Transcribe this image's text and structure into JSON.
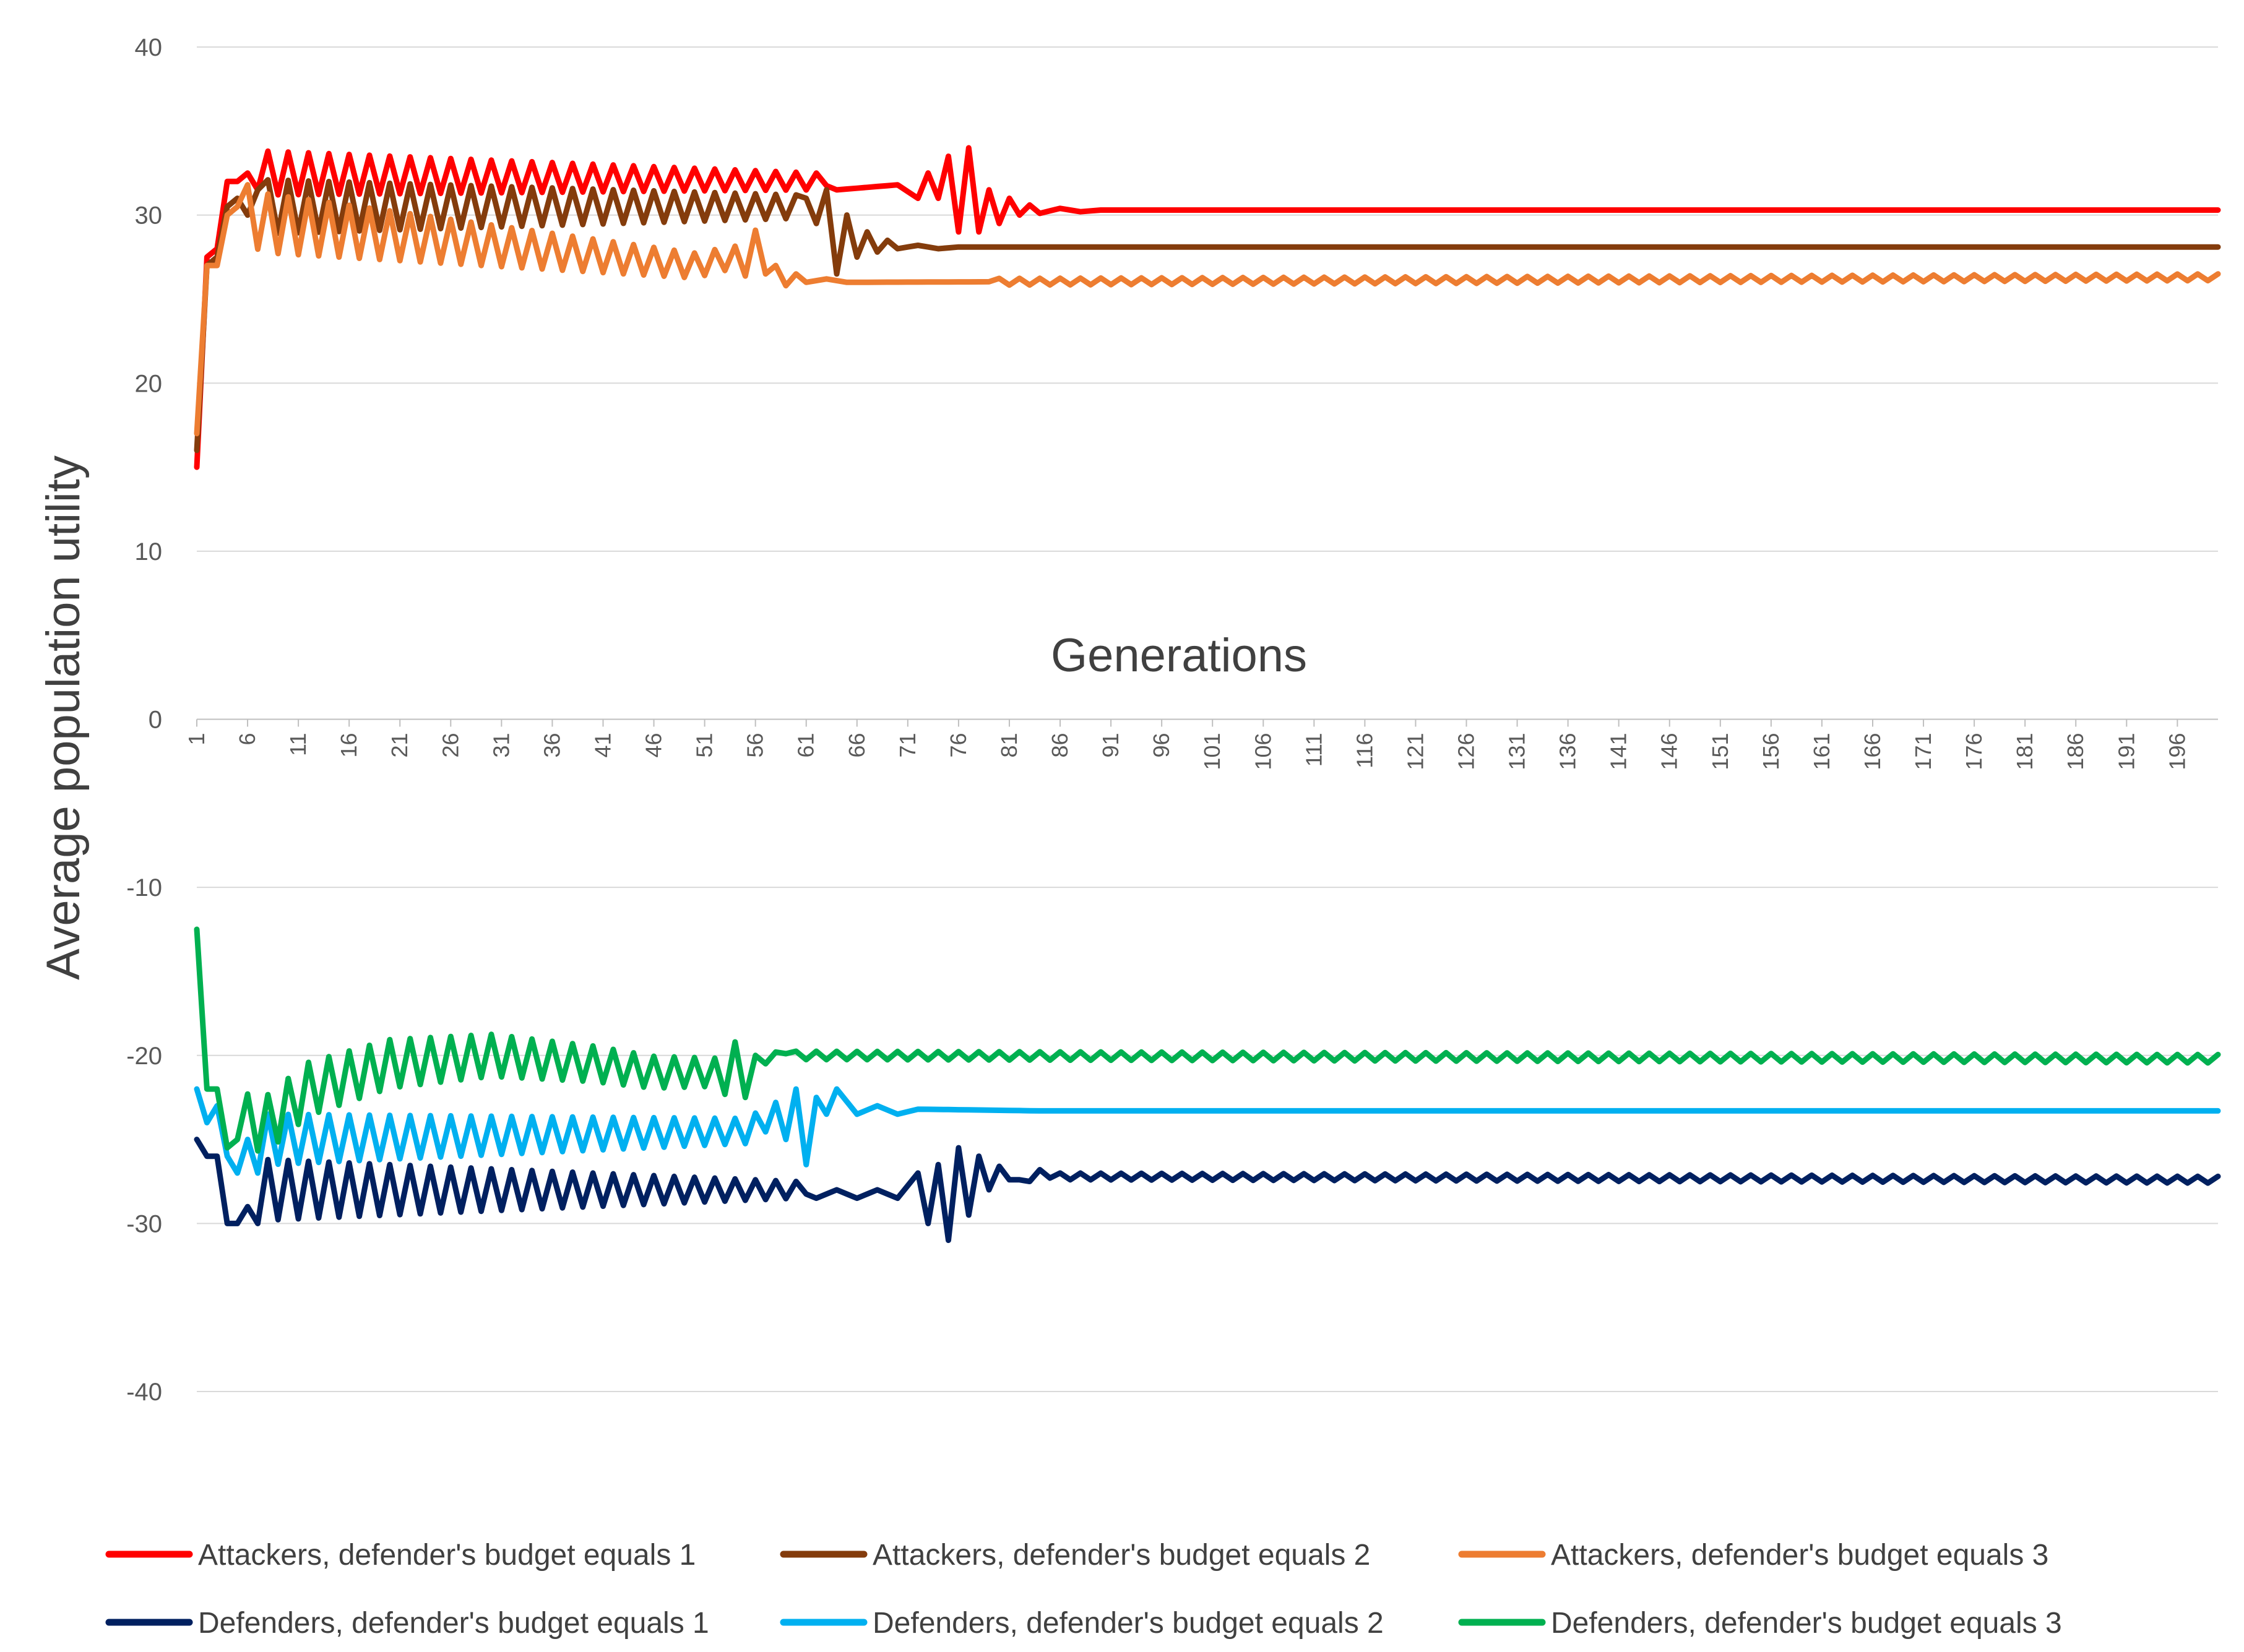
{
  "chart_data": {
    "type": "line",
    "title": "",
    "xlabel": "Generations",
    "ylabel": "Average population utility",
    "ylim": [
      -40,
      40
    ],
    "yticks": [
      40,
      30,
      20,
      10,
      0,
      -10,
      -20,
      -30,
      -40
    ],
    "xlim": [
      1,
      200
    ],
    "xtick_labels": [
      "1",
      "6",
      "11",
      "16",
      "21",
      "26",
      "31",
      "36",
      "41",
      "46",
      "51",
      "56",
      "61",
      "66",
      "71",
      "76",
      "81",
      "86",
      "91",
      "96",
      "101",
      "106",
      "111",
      "116",
      "121",
      "126",
      "131",
      "136",
      "141",
      "146",
      "151",
      "156",
      "161",
      "166",
      "171",
      "176",
      "181",
      "186",
      "191",
      "196"
    ],
    "grid": "horizontal",
    "legend_position": "bottom",
    "series": [
      {
        "name": "Attackers, defender's budget equals 1",
        "color": "#ff0000",
        "keypoints": [
          [
            1,
            15
          ],
          [
            2,
            27.5
          ],
          [
            3,
            28
          ],
          [
            4,
            32
          ],
          [
            5,
            32
          ],
          [
            6,
            32.5
          ],
          [
            7,
            31.5
          ],
          [
            8,
            32.5
          ],
          [
            62,
            32
          ],
          [
            64,
            31.5
          ],
          [
            70,
            31.8
          ],
          [
            72,
            31
          ],
          [
            73,
            32.5
          ],
          [
            74,
            31
          ],
          [
            75,
            33.5
          ],
          [
            76,
            29
          ],
          [
            77,
            34
          ],
          [
            78,
            29
          ],
          [
            79,
            31.5
          ],
          [
            80,
            29.5
          ],
          [
            81,
            31
          ],
          [
            82,
            30
          ],
          [
            83,
            30.6
          ],
          [
            84,
            30.1
          ],
          [
            86,
            30.4
          ],
          [
            88,
            30.2
          ],
          [
            90,
            30.3
          ],
          [
            200,
            30.3
          ]
        ],
        "osc": [
          [
            8,
            62,
            1.3,
            0.5
          ]
        ]
      },
      {
        "name": "Attackers, defender's budget equals 2",
        "color": "#843c0c",
        "keypoints": [
          [
            1,
            16
          ],
          [
            2,
            27
          ],
          [
            3,
            27.5
          ],
          [
            4,
            30.5
          ],
          [
            5,
            31
          ],
          [
            6,
            30
          ],
          [
            7,
            31.5
          ],
          [
            8,
            30.5
          ],
          [
            60,
            30.5
          ],
          [
            61,
            31
          ],
          [
            62,
            29.5
          ],
          [
            63,
            31.5
          ],
          [
            64,
            26.5
          ],
          [
            65,
            30
          ],
          [
            66,
            27.5
          ],
          [
            67,
            29
          ],
          [
            68,
            27.8
          ],
          [
            69,
            28.5
          ],
          [
            70,
            28
          ],
          [
            72,
            28.2
          ],
          [
            74,
            28
          ],
          [
            76,
            28.1
          ],
          [
            200,
            28.1
          ]
        ],
        "osc": [
          [
            8,
            60,
            1.6,
            0.7
          ]
        ]
      },
      {
        "name": "Attackers, defender's budget equals 3",
        "color": "#ed7d31",
        "keypoints": [
          [
            1,
            17
          ],
          [
            2,
            27
          ],
          [
            3,
            27
          ],
          [
            4,
            30
          ],
          [
            5,
            30.5
          ],
          [
            6,
            30
          ],
          [
            8,
            29.5
          ],
          [
            50,
            27
          ],
          [
            54,
            27.5
          ],
          [
            55,
            27
          ],
          [
            56,
            28.5
          ],
          [
            57,
            26.5
          ],
          [
            58,
            27
          ],
          [
            59,
            25.8
          ],
          [
            60,
            26.5
          ],
          [
            61,
            26
          ],
          [
            63,
            26.2
          ],
          [
            65,
            26
          ],
          [
            200,
            26.3
          ]
        ],
        "osc": [
          [
            6,
            56,
            1.8,
            0.6
          ],
          [
            80,
            200,
            0.2,
            0.2
          ]
        ]
      },
      {
        "name": "Defenders, defender's budget equals 1",
        "color": "#002060",
        "keypoints": [
          [
            1,
            -25
          ],
          [
            2,
            -26
          ],
          [
            3,
            -26
          ],
          [
            4,
            -30
          ],
          [
            5,
            -30
          ],
          [
            6,
            -29
          ],
          [
            7,
            -30
          ],
          [
            8,
            -28
          ],
          [
            60,
            -28
          ],
          [
            62,
            -28.5
          ],
          [
            64,
            -28
          ],
          [
            66,
            -28.5
          ],
          [
            68,
            -28
          ],
          [
            70,
            -28.5
          ],
          [
            72,
            -27
          ],
          [
            73,
            -30
          ],
          [
            74,
            -26.5
          ],
          [
            75,
            -31
          ],
          [
            76,
            -25.5
          ],
          [
            77,
            -29.5
          ],
          [
            78,
            -26
          ],
          [
            79,
            -28
          ],
          [
            80,
            -26.8
          ],
          [
            82,
            -27.6
          ],
          [
            84,
            -27
          ],
          [
            86,
            -27.2
          ],
          [
            200,
            -27.4
          ]
        ],
        "osc": [
          [
            8,
            60,
            1.8,
            0.5
          ],
          [
            80,
            200,
            0.2,
            0.2
          ]
        ]
      },
      {
        "name": "Defenders, defender's budget equals 2",
        "color": "#00b0f0",
        "keypoints": [
          [
            1,
            -22
          ],
          [
            2,
            -24
          ],
          [
            3,
            -23
          ],
          [
            4,
            -26
          ],
          [
            5,
            -27
          ],
          [
            6,
            -25
          ],
          [
            7,
            -27
          ],
          [
            8,
            -25
          ],
          [
            55,
            -24.5
          ],
          [
            58,
            -23.5
          ],
          [
            59,
            -25
          ],
          [
            60,
            -22
          ],
          [
            61,
            -26.5
          ],
          [
            62,
            -22.5
          ],
          [
            63,
            -23.5
          ],
          [
            64,
            -22
          ],
          [
            66,
            -23.5
          ],
          [
            68,
            -23
          ],
          [
            70,
            -23.5
          ],
          [
            72,
            -23.2
          ],
          [
            84,
            -23.3
          ],
          [
            85,
            -23.3
          ],
          [
            200,
            -23.3
          ]
        ],
        "osc": [
          [
            8,
            58,
            1.5,
            0.7
          ]
        ]
      },
      {
        "name": "Defenders, defender's budget equals 3",
        "color": "#00b050",
        "keypoints": [
          [
            1,
            -12.5
          ],
          [
            2,
            -22
          ],
          [
            3,
            -22
          ],
          [
            4,
            -25.5
          ],
          [
            5,
            -25
          ],
          [
            6,
            -24
          ],
          [
            8,
            -24
          ],
          [
            12,
            -22
          ],
          [
            20,
            -20.5
          ],
          [
            30,
            -20
          ],
          [
            40,
            -20.5
          ],
          [
            46,
            -21
          ],
          [
            52,
            -21
          ],
          [
            53,
            -21.5
          ],
          [
            54,
            -20
          ],
          [
            55,
            -22.5
          ],
          [
            56,
            -20
          ],
          [
            57,
            -20.5
          ],
          [
            58,
            -19.8
          ],
          [
            60,
            -20
          ],
          [
            200,
            -20.2
          ]
        ],
        "osc": [
          [
            6,
            54,
            1.7,
            0.8
          ],
          [
            60,
            200,
            0.25,
            0.25
          ]
        ]
      }
    ]
  }
}
